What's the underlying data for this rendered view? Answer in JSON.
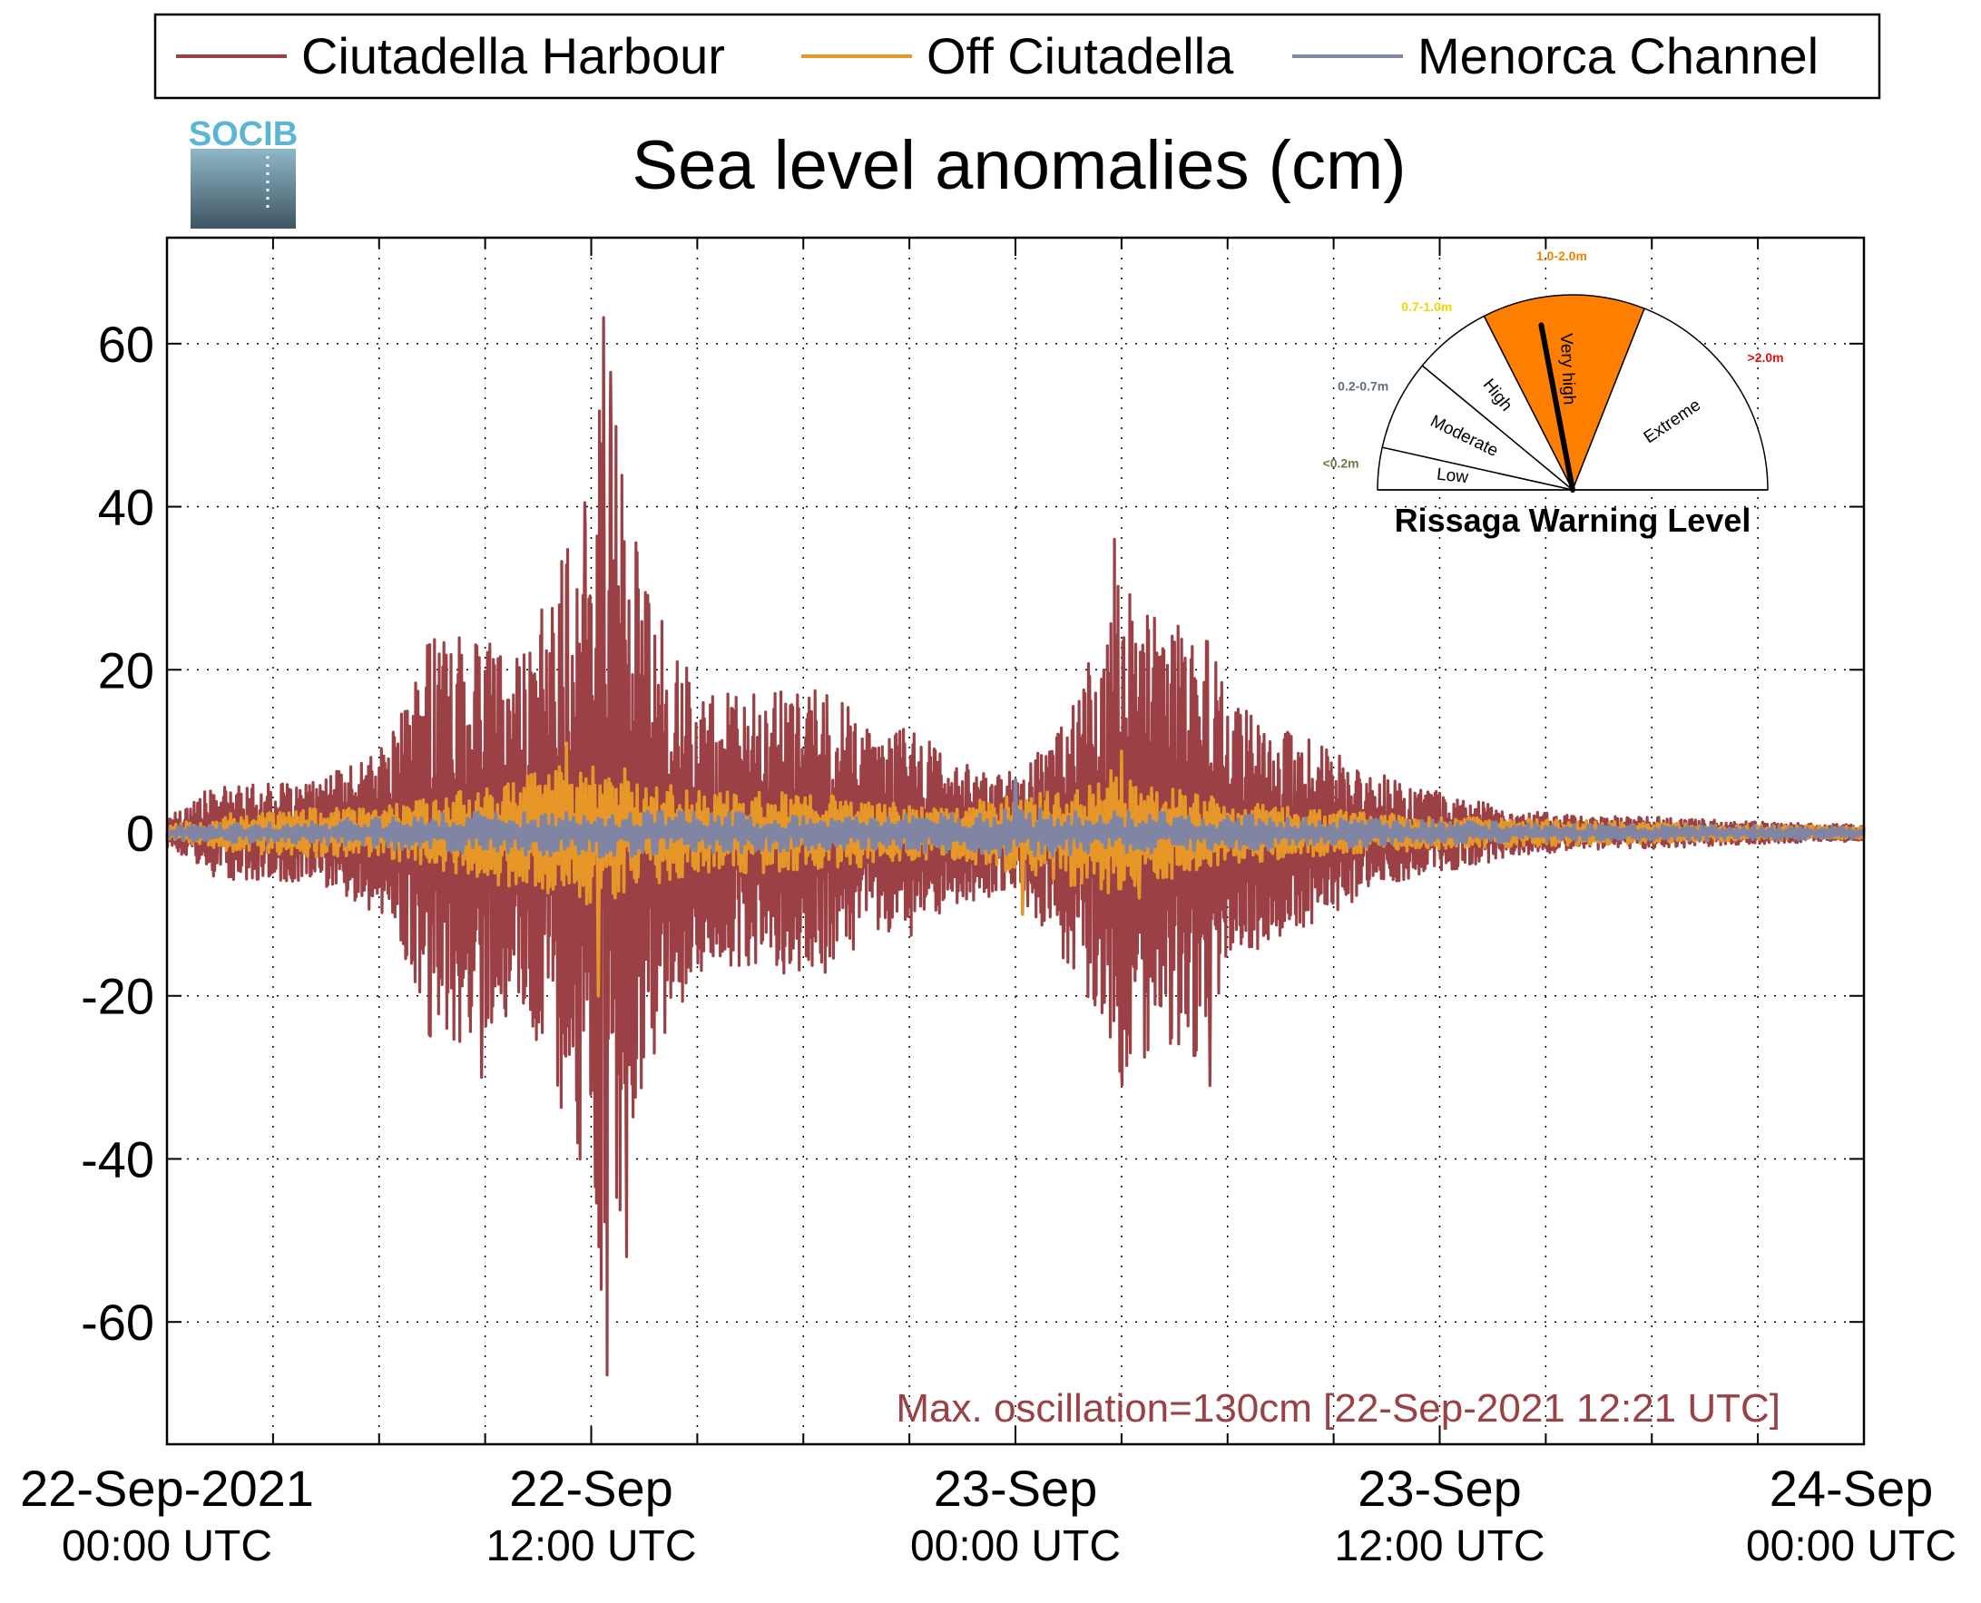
{
  "chart_data": {
    "type": "line",
    "title": "Sea level anomalies (cm)",
    "xlabel": "",
    "ylabel": "",
    "ylim": [
      -75,
      73
    ],
    "xlim_hours": [
      0,
      48
    ],
    "y_ticks": [
      60,
      40,
      20,
      0,
      -20,
      -40,
      -60
    ],
    "y_tick_labels": [
      "60",
      "40",
      "20",
      "0",
      "-20",
      "-40",
      "-60"
    ],
    "x_major_ticks": [
      {
        "hour": 0,
        "line1": "22-Sep-2021",
        "line2": "00:00 UTC"
      },
      {
        "hour": 12,
        "line1": "22-Sep",
        "line2": "12:00 UTC"
      },
      {
        "hour": 24,
        "line1": "23-Sep",
        "line2": "00:00 UTC"
      },
      {
        "hour": 36,
        "line1": "23-Sep",
        "line2": "12:00 UTC"
      },
      {
        "hour": 48,
        "line1": "24-Sep",
        "line2": "00:00 UTC"
      }
    ],
    "x_minor_ticks_hours": [
      3,
      6,
      9,
      15,
      18,
      21,
      27,
      30,
      33,
      39,
      42,
      45
    ],
    "grid": true,
    "legend_position": "top",
    "series": [
      {
        "name": "Ciutadella Harbour",
        "color": "#9b4145",
        "envelope": {
          "hours": [
            0,
            1,
            2,
            3,
            4,
            5,
            6,
            7,
            7.5,
            8,
            8.5,
            9,
            10,
            11,
            11.5,
            12,
            12.3,
            12.6,
            13,
            13.5,
            14,
            15,
            16,
            17,
            18,
            19,
            20,
            21,
            22,
            23,
            24,
            25,
            26,
            26.5,
            27,
            28,
            29,
            29.5,
            30,
            31,
            32,
            33,
            34,
            35,
            36,
            37,
            38,
            40,
            42,
            44,
            46,
            48
          ],
          "amplitude_cm": [
            2,
            5,
            6,
            6,
            6,
            8,
            10,
            18,
            28,
            24,
            30,
            24,
            22,
            32,
            40,
            38,
            60,
            58,
            40,
            32,
            26,
            18,
            17,
            17,
            18,
            17,
            12,
            13,
            10,
            8,
            8,
            13,
            20,
            26,
            32,
            26,
            28,
            24,
            16,
            14,
            12,
            10,
            8,
            6,
            5,
            4,
            3,
            2,
            2,
            1.5,
            1.2,
            1
          ]
        },
        "peaks": [
          {
            "hour": 11.68,
            "value": -40
          },
          {
            "hour": 11.82,
            "value": 40.5
          },
          {
            "hour": 12.1,
            "value": -33
          },
          {
            "hour": 12.28,
            "value": -56
          },
          {
            "hour": 12.35,
            "value": 63.2
          },
          {
            "hour": 12.45,
            "value": -66.5
          },
          {
            "hour": 12.55,
            "value": 56.5
          },
          {
            "hour": 13.0,
            "value": -52
          },
          {
            "hour": 8.9,
            "value": 27.5
          },
          {
            "hour": 8.9,
            "value": -30
          },
          {
            "hour": 26.8,
            "value": 36
          },
          {
            "hour": 27.0,
            "value": -29
          },
          {
            "hour": 29.5,
            "value": 28
          },
          {
            "hour": 29.5,
            "value": -31
          }
        ],
        "samples_per_hour": 60
      },
      {
        "name": "Off Ciutadella",
        "color": "#e79628",
        "envelope": {
          "hours": [
            0,
            2,
            4,
            6,
            8,
            10,
            11,
            12,
            13,
            14,
            16,
            18,
            20,
            22,
            24,
            26,
            27,
            28,
            30,
            32,
            36,
            40,
            44,
            48
          ],
          "amplitude_cm": [
            1,
            2.5,
            3,
            3,
            5,
            7,
            8,
            9,
            8,
            6,
            5,
            5,
            4,
            3,
            5,
            7,
            8,
            6,
            4,
            3,
            2,
            1.5,
            1,
            0.8
          ]
        },
        "peaks": [
          {
            "hour": 11.3,
            "value": 11
          },
          {
            "hour": 12.2,
            "value": -20
          },
          {
            "hour": 24.2,
            "value": -10
          },
          {
            "hour": 27.0,
            "value": 10
          },
          {
            "hour": 27.5,
            "value": -8
          }
        ],
        "samples_per_hour": 40
      },
      {
        "name": "Menorca Channel",
        "color": "#7f85a3",
        "envelope": {
          "hours": [
            0,
            4,
            8,
            12,
            16,
            20,
            24,
            28,
            32,
            36,
            40,
            48
          ],
          "amplitude_cm": [
            1,
            1.5,
            2.5,
            3,
            2.5,
            2,
            3,
            2.5,
            2,
            1.5,
            1,
            0.8
          ]
        },
        "peaks": [
          {
            "hour": 24.0,
            "value": 6.5
          }
        ],
        "samples_per_hour": 20
      }
    ],
    "annotations": [
      {
        "text": "Max. oscillation=130cm [22-Sep-2021 12:21 UTC]",
        "color": "#9b4145",
        "position": "bottom-right"
      }
    ]
  },
  "logo": {
    "text": "SOCIB",
    "name": "socib-logo"
  },
  "gauge": {
    "title": "Rissaga Warning Level",
    "pointer_level": "Very high",
    "pointer_fraction": 0.44,
    "levels": [
      {
        "name": "Low",
        "range": "<0.2m",
        "range_color": "#6e7a45",
        "fill": "#ffffff"
      },
      {
        "name": "Moderate",
        "range": "0.2-0.7m",
        "range_color": "#5d6f7a",
        "fill": "#ffffff"
      },
      {
        "name": "High",
        "range": "0.7-1.0m",
        "range_color": "#f2d600",
        "fill": "#ffffff"
      },
      {
        "name": "Very high",
        "range": "1.0-2.0m",
        "range_color": "#f08200",
        "fill": "#ff8000"
      },
      {
        "name": "Extreme",
        "range": ">2.0m",
        "range_color": "#e01010",
        "fill": "#ffffff"
      }
    ]
  }
}
